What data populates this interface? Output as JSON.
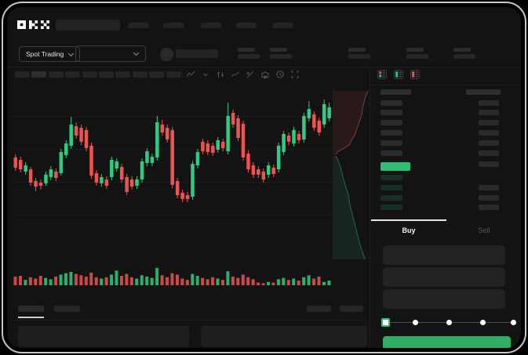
{
  "brand": {
    "name": "OKX"
  },
  "header": {
    "nav_placeholder_count": 5
  },
  "market_bar": {
    "market_selector_label": "Spot Trading",
    "stat_group_count": 5
  },
  "chart_toolbar": {
    "interval_chip_count": 10,
    "icons": [
      "chart-style-icon",
      "interval-dropdown-icon",
      "indicators-icon",
      "line-tool-icon",
      "tag-icon",
      "camera-icon",
      "clock-icon",
      "fullscreen-icon"
    ]
  },
  "order_book": {
    "view_toggles": [
      "asks-and-bids",
      "bids-only",
      "asks-only"
    ],
    "ask_row_count": 6,
    "bid_row_count": 4,
    "right_col_row_count": 7,
    "right_col_bid_row_count": 3,
    "accent_green": "#2ebd72"
  },
  "trade_panel": {
    "buy_tab_label": "Buy",
    "sell_tab_label": "Sell",
    "field_count": 3,
    "slider_stop_count": 5,
    "submit_color": "#2eae66"
  },
  "colors": {
    "up": "#2ecc83",
    "down": "#ef5350",
    "background": "#131313"
  },
  "chart_data": {
    "type": "candlestick+volume",
    "title": "",
    "xlabel": "",
    "ylabel": "",
    "axis_labels_visible": false,
    "grid": "faint-horizontal",
    "ylim": [
      0,
      100
    ],
    "colors": {
      "up": "#2ecc83",
      "down": "#ef5350"
    },
    "candles_ohlc": [
      [
        61.4,
        63.2,
        53.6,
        55.5
      ],
      [
        60,
        61.8,
        52.7,
        54.5
      ],
      [
        53.2,
        58.6,
        51.4,
        56.8
      ],
      [
        54.5,
        55.9,
        45,
        46.8
      ],
      [
        47.7,
        49.5,
        41.8,
        44.5
      ],
      [
        46.8,
        48.6,
        42.7,
        45
      ],
      [
        46.4,
        53.2,
        45,
        51.4
      ],
      [
        50,
        56.4,
        48.2,
        54.5
      ],
      [
        53.2,
        55,
        47.7,
        49.5
      ],
      [
        52.3,
        66.4,
        50.9,
        64.5
      ],
      [
        62.7,
        71.4,
        60.9,
        69.5
      ],
      [
        68.2,
        85,
        66.4,
        80.5
      ],
      [
        79.5,
        81.8,
        72.3,
        74.1
      ],
      [
        78.6,
        80.5,
        68.6,
        70.5
      ],
      [
        77.3,
        79.1,
        65,
        66.8
      ],
      [
        68.2,
        70,
        49.1,
        50.9
      ],
      [
        52.3,
        54.1,
        45,
        46.8
      ],
      [
        46.4,
        51.8,
        44.5,
        50
      ],
      [
        48.6,
        50.5,
        43.2,
        45
      ],
      [
        50,
        61.8,
        48.2,
        60
      ],
      [
        55,
        60.9,
        53.2,
        59.1
      ],
      [
        55.9,
        57.7,
        46.8,
        48.6
      ],
      [
        50,
        51.8,
        39.5,
        41.4
      ],
      [
        48.6,
        50.5,
        42.7,
        44.5
      ],
      [
        45,
        50.5,
        43.2,
        48.6
      ],
      [
        48.6,
        60.9,
        46.8,
        59.1
      ],
      [
        58.2,
        66.8,
        56.4,
        65
      ],
      [
        58.2,
        63.6,
        56.4,
        61.8
      ],
      [
        61.4,
        85.5,
        59.5,
        81.8
      ],
      [
        80.5,
        83.2,
        74.1,
        75.9
      ],
      [
        78.6,
        80.5,
        70,
        71.8
      ],
      [
        77.3,
        79.1,
        43.6,
        45.5
      ],
      [
        47.7,
        49.5,
        37.7,
        39.5
      ],
      [
        40.9,
        42.7,
        35.5,
        37.3
      ],
      [
        39.5,
        41.4,
        35.5,
        37.3
      ],
      [
        38.6,
        59.5,
        36.8,
        57.7
      ],
      [
        56.8,
        66.4,
        55,
        64.5
      ],
      [
        70.5,
        72.3,
        63.2,
        65
      ],
      [
        69.5,
        71.4,
        62.7,
        64.5
      ],
      [
        68.2,
        70,
        62.3,
        64.1
      ],
      [
        65.9,
        73.2,
        64.1,
        71.4
      ],
      [
        70.5,
        72.3,
        65,
        66.8
      ],
      [
        65,
        93.2,
        63.2,
        85.5
      ],
      [
        87.3,
        89.1,
        78.6,
        80.5
      ],
      [
        84.1,
        85.9,
        70.9,
        72.7
      ],
      [
        80.9,
        82.7,
        59.5,
        61.4
      ],
      [
        63.6,
        65.5,
        52.7,
        54.5
      ],
      [
        56.8,
        58.6,
        49.5,
        51.4
      ],
      [
        54.5,
        56.4,
        49.5,
        51.4
      ],
      [
        53.2,
        55,
        46.8,
        48.6
      ],
      [
        51.4,
        58.6,
        49.5,
        56.8
      ],
      [
        55.5,
        57.3,
        50,
        51.8
      ],
      [
        54.5,
        70,
        52.7,
        68.2
      ],
      [
        64.5,
        76.8,
        62.7,
        75
      ],
      [
        74.1,
        75.9,
        68.6,
        70.5
      ],
      [
        69.5,
        79.1,
        67.7,
        77.3
      ],
      [
        75,
        76.8,
        69.5,
        71.4
      ],
      [
        71.8,
        87.3,
        70,
        85.5
      ],
      [
        84.1,
        94.1,
        82.3,
        89.5
      ],
      [
        86.4,
        88.2,
        76.8,
        78.6
      ],
      [
        82.7,
        84.5,
        74.1,
        75.9
      ],
      [
        80.5,
        95,
        78.6,
        92.3
      ],
      [
        84.1,
        93.2,
        82.3,
        90.5
      ]
    ],
    "volume": [
      13,
      14,
      8,
      12,
      10,
      14,
      11,
      9,
      13,
      16,
      18,
      20,
      17,
      15,
      13,
      19,
      12,
      10,
      12,
      16,
      22,
      14,
      17,
      12,
      10,
      15,
      13,
      11,
      26,
      15,
      12,
      18,
      16,
      10,
      8,
      17,
      14,
      11,
      9,
      12,
      10,
      8,
      21,
      13,
      11,
      16,
      12,
      9,
      4,
      3,
      5,
      4,
      9,
      11,
      8,
      10,
      7,
      12,
      15,
      10,
      13,
      5,
      7
    ],
    "depth_profile": {
      "asks_curve": [
        [
          452,
          7
        ],
        [
          449,
          14
        ],
        [
          447,
          22
        ],
        [
          445,
          30
        ],
        [
          444,
          38
        ],
        [
          441,
          46
        ],
        [
          439,
          52
        ],
        [
          437,
          58
        ],
        [
          435,
          64
        ],
        [
          431,
          70
        ],
        [
          428,
          76
        ],
        [
          422,
          80
        ],
        [
          414,
          84
        ],
        [
          411,
          88
        ]
      ],
      "bids_curve": [
        [
          411,
          90
        ],
        [
          414,
          96
        ],
        [
          417,
          104
        ],
        [
          419,
          112
        ],
        [
          421,
          120
        ],
        [
          424,
          130
        ],
        [
          427,
          140
        ],
        [
          429,
          152
        ],
        [
          432,
          164
        ],
        [
          435,
          176
        ],
        [
          438,
          188
        ],
        [
          441,
          200
        ],
        [
          444,
          210
        ],
        [
          447,
          218
        ],
        [
          449,
          222
        ]
      ]
    },
    "gridline_y_units": [
      85,
      66,
      47,
      28
    ]
  }
}
